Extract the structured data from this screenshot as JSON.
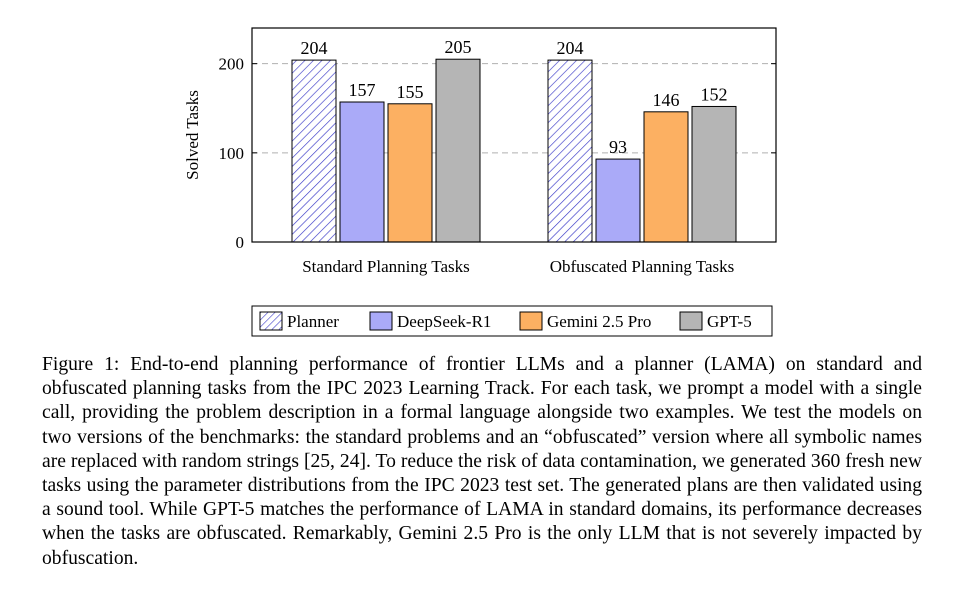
{
  "chart_data": {
    "type": "bar",
    "title": "",
    "xlabel": "",
    "ylabel": "Solved Tasks",
    "ylim": [
      0,
      240
    ],
    "yticks": [
      0,
      100,
      200
    ],
    "grid": "horizontal-dashed",
    "legend_placement": "bottom",
    "categories": [
      "Standard Planning Tasks",
      "Obfuscated Planning Tasks"
    ],
    "series": [
      {
        "name": "Planner",
        "values": [
          204,
          204
        ],
        "color": "#3a3ac8",
        "pattern": "hatch"
      },
      {
        "name": "DeepSeek-R1",
        "values": [
          157,
          93
        ],
        "color": "#aaaaf8"
      },
      {
        "name": "Gemini 2.5 Pro",
        "values": [
          155,
          146
        ],
        "color": "#fcb062"
      },
      {
        "name": "GPT-5",
        "values": [
          205,
          152
        ],
        "color": "#b5b5b5"
      }
    ]
  },
  "caption": "Figure 1: End-to-end planning performance of frontier LLMs and a planner (LAMA) on standard and obfuscated planning tasks from the IPC 2023 Learning Track. For each task, we prompt a model with a single call, providing the problem description in a formal language alongside two examples. We test the models on two versions of the benchmarks: the standard problems and an “obfuscated” version where all symbolic names are replaced with random strings [25, 24]. To reduce the risk of data contamination, we generated 360 fresh new tasks using the parameter distributions from the IPC 2023 test set. The generated plans are then validated using a sound tool. While GPT-5 matches the performance of LAMA in standard domains, its performance decreases when the tasks are obfuscated. Remarkably, Gemini 2.5 Pro is the only LLM that is not severely impacted by obfuscation."
}
